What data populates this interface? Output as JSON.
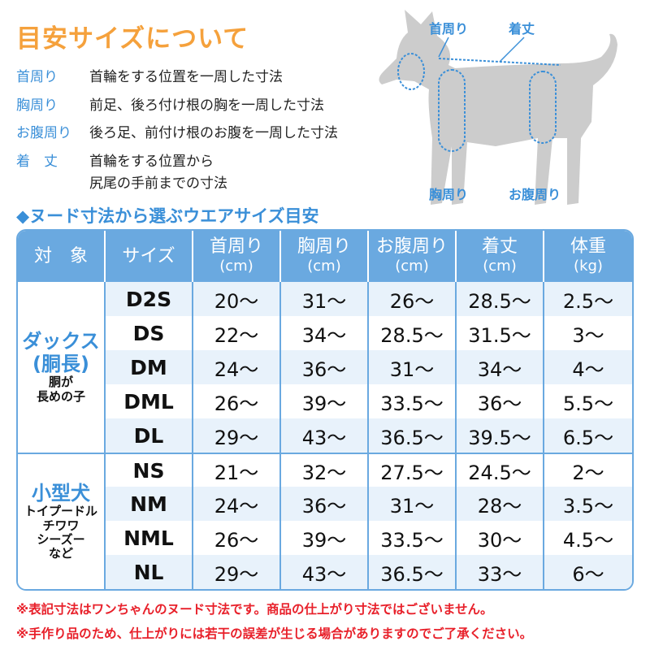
{
  "title": "目安サイズについて",
  "definitions": [
    {
      "term": "首周り",
      "desc": "首輪をする位置を一周した寸法"
    },
    {
      "term": "胸周り",
      "desc": "前足、後ろ付け根の胸を一周した寸法"
    },
    {
      "term": "お腹周り",
      "desc": "後ろ足、前付け根のお腹を一周した寸法"
    },
    {
      "term": "着　丈",
      "desc": "首輪をする位置から",
      "desc2": "尻尾の手前までの寸法"
    }
  ],
  "diagram": {
    "neck": "首周り",
    "length": "着丈",
    "chest": "胸周り",
    "belly": "お腹周り"
  },
  "subtitle": "◆ヌード寸法から選ぶウエアサイズ目安",
  "table": {
    "headers": [
      {
        "label": "対　象"
      },
      {
        "label": "サイズ"
      },
      {
        "label": "首周り",
        "unit": "(cm)"
      },
      {
        "label": "胸周り",
        "unit": "(cm)"
      },
      {
        "label": "お腹周り",
        "unit": "(cm)"
      },
      {
        "label": "着丈",
        "unit": "(cm)"
      },
      {
        "label": "体重",
        "unit": "(kg)"
      }
    ],
    "groups": [
      {
        "name": "ダックス",
        "name2": "(胴長)",
        "desc": "胴が",
        "desc2": "長めの子",
        "rows": [
          [
            "D2S",
            "20～",
            "31～",
            "26～",
            "28.5～",
            "2.5～"
          ],
          [
            "DS",
            "22～",
            "34～",
            "28.5～",
            "31.5～",
            "3～"
          ],
          [
            "DM",
            "24～",
            "36～",
            "31～",
            "34～",
            "4～"
          ],
          [
            "DML",
            "26～",
            "39～",
            "33.5～",
            "36～",
            "5.5～"
          ],
          [
            "DL",
            "29～",
            "43～",
            "36.5～",
            "39.5～",
            "6.5～"
          ]
        ]
      },
      {
        "name": "小型犬",
        "desc": "トイプードル",
        "desc2": "チワワ",
        "desc3": "シーズー",
        "desc4": "など",
        "rows": [
          [
            "NS",
            "21～",
            "32～",
            "27.5～",
            "24.5～",
            "2～"
          ],
          [
            "NM",
            "24～",
            "36～",
            "31～",
            "28～",
            "3.5～"
          ],
          [
            "NML",
            "26～",
            "39～",
            "33.5～",
            "30～",
            "4.5～"
          ],
          [
            "NL",
            "29～",
            "43～",
            "36.5～",
            "33～",
            "6～"
          ]
        ]
      }
    ]
  },
  "notes": [
    "※表記寸法はワンちゃんのヌード寸法です。商品の仕上がり寸法ではございません。",
    "※手作り品のため、仕上がりには若干の誤差が生じる場合がありますのでご了承ください。"
  ],
  "colors": {
    "accent": "#3a8fd8",
    "title": "#f5a13c",
    "header": "#6aa9e0",
    "stripe": "#e8f2fb",
    "note": "#e8202a",
    "dog": "#cccccc"
  }
}
